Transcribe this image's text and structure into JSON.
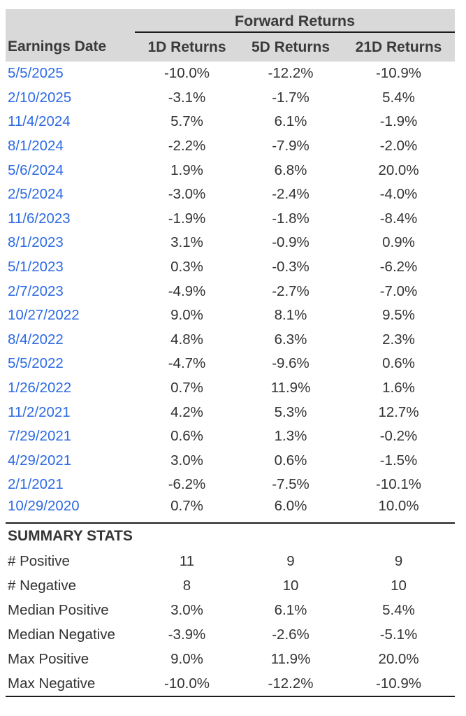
{
  "colors": {
    "header_bg": "#d9d9d9",
    "link_blue": "#2e6be2",
    "text_dark": "#333333",
    "rule_black": "#1c1c1c"
  },
  "chart_data": {
    "type": "table",
    "title": "Forward Returns",
    "columns": [
      "Earnings Date",
      "1D Returns",
      "5D Returns",
      "21D Returns"
    ],
    "rows": [
      {
        "date": "5/5/2025",
        "r1d": "-10.0%",
        "r5d": "-12.2%",
        "r21d": "-10.9%"
      },
      {
        "date": "2/10/2025",
        "r1d": "-3.1%",
        "r5d": "-1.7%",
        "r21d": "5.4%"
      },
      {
        "date": "11/4/2024",
        "r1d": "5.7%",
        "r5d": "6.1%",
        "r21d": "-1.9%"
      },
      {
        "date": "8/1/2024",
        "r1d": "-2.2%",
        "r5d": "-7.9%",
        "r21d": "-2.0%"
      },
      {
        "date": "5/6/2024",
        "r1d": "1.9%",
        "r5d": "6.8%",
        "r21d": "20.0%"
      },
      {
        "date": "2/5/2024",
        "r1d": "-3.0%",
        "r5d": "-2.4%",
        "r21d": "-4.0%"
      },
      {
        "date": "11/6/2023",
        "r1d": "-1.9%",
        "r5d": "-1.8%",
        "r21d": "-8.4%"
      },
      {
        "date": "8/1/2023",
        "r1d": "3.1%",
        "r5d": "-0.9%",
        "r21d": "0.9%"
      },
      {
        "date": "5/1/2023",
        "r1d": "0.3%",
        "r5d": "-0.3%",
        "r21d": "-6.2%"
      },
      {
        "date": "2/7/2023",
        "r1d": "-4.9%",
        "r5d": "-2.7%",
        "r21d": "-7.0%"
      },
      {
        "date": "10/27/2022",
        "r1d": "9.0%",
        "r5d": "8.1%",
        "r21d": "9.5%"
      },
      {
        "date": "8/4/2022",
        "r1d": "4.8%",
        "r5d": "6.3%",
        "r21d": "2.3%"
      },
      {
        "date": "5/5/2022",
        "r1d": "-4.7%",
        "r5d": "-9.6%",
        "r21d": "0.6%"
      },
      {
        "date": "1/26/2022",
        "r1d": "0.7%",
        "r5d": "11.9%",
        "r21d": "1.6%"
      },
      {
        "date": "11/2/2021",
        "r1d": "4.2%",
        "r5d": "5.3%",
        "r21d": "12.7%"
      },
      {
        "date": "7/29/2021",
        "r1d": "0.6%",
        "r5d": "1.3%",
        "r21d": "-0.2%"
      },
      {
        "date": "4/29/2021",
        "r1d": "3.0%",
        "r5d": "0.6%",
        "r21d": "-1.5%"
      },
      {
        "date": "2/1/2021",
        "r1d": "-6.2%",
        "r5d": "-7.5%",
        "r21d": "-10.1%"
      },
      {
        "date": "10/29/2020",
        "r1d": "0.7%",
        "r5d": "6.0%",
        "r21d": "10.0%"
      }
    ],
    "summary": {
      "heading": "SUMMARY STATS",
      "rows": [
        {
          "label": "# Positive",
          "r1d": "11",
          "r5d": "9",
          "r21d": "9"
        },
        {
          "label": "# Negative",
          "r1d": "8",
          "r5d": "10",
          "r21d": "10"
        },
        {
          "label": "Median Positive",
          "r1d": "3.0%",
          "r5d": "6.1%",
          "r21d": "5.4%"
        },
        {
          "label": "Median Negative",
          "r1d": "-3.9%",
          "r5d": "-2.6%",
          "r21d": "-5.1%"
        },
        {
          "label": "Max Positive",
          "r1d": "9.0%",
          "r5d": "11.9%",
          "r21d": "20.0%"
        },
        {
          "label": "Max Negative",
          "r1d": "-10.0%",
          "r5d": "-12.2%",
          "r21d": "-10.9%"
        }
      ]
    }
  }
}
